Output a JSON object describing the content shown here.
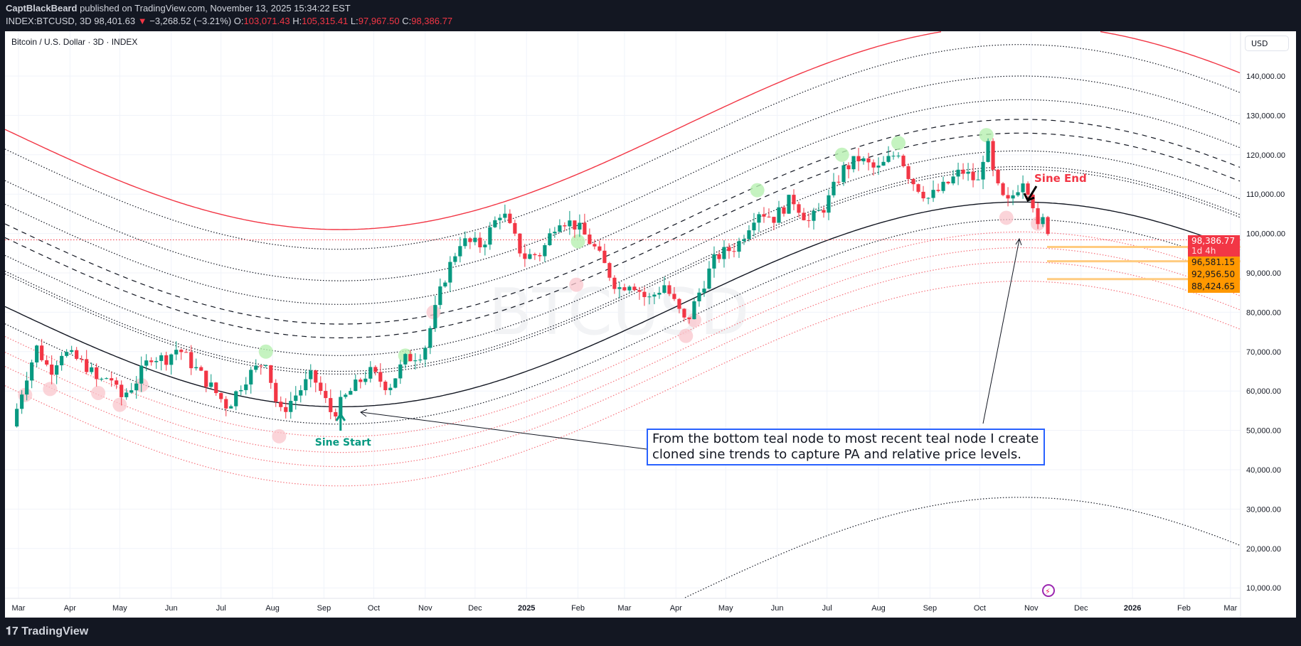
{
  "header": {
    "author": "CaptBlackBeard",
    "published_text": "published on TradingView.com, November 13, 2025 15:34:22 EST",
    "symbol": "INDEX:BTCUSD, 3D",
    "last": "98,401.63",
    "change": "−3,268.52 (−3.21%)",
    "o_label": "O:",
    "o": "103,071.43",
    "h_label": "H:",
    "h": "105,315.41",
    "l_label": "L:",
    "l": "97,967.50",
    "c_label": "C:",
    "c": "98,386.77"
  },
  "chart_title": "Bitcoin / U.S. Dollar · 3D · INDEX",
  "currency_button": "USD",
  "watermark": "BTCUSD",
  "footer_logo": "TradingView",
  "price_tags": {
    "current": "98,386.77",
    "countdown": "1d 4h",
    "levels": [
      "96,581.15",
      "92,956.50",
      "88,424.65"
    ]
  },
  "annotations": {
    "sine_start": "Sine Start",
    "sine_end": "Sine End",
    "note": "From the bottom teal node to most recent teal node I create cloned sine trends to capture PA and relative price levels."
  },
  "colors": {
    "up": "#089981",
    "down": "#f23645",
    "level": "#ff9800",
    "note_border": "#2962ff",
    "highlight_green": "#b6f0b0",
    "highlight_pink": "#f9c6cc",
    "sine_start": "#089981",
    "sine_end": "#f23645"
  },
  "chart_data": {
    "type": "candlestick",
    "interval": "3D",
    "y_ticks": [
      10000,
      20000,
      30000,
      40000,
      50000,
      60000,
      70000,
      80000,
      90000,
      100000,
      110000,
      120000,
      130000,
      140000
    ],
    "y_tick_labels": [
      "10,000.00",
      "20,000.00",
      "30,000.00",
      "40,000.00",
      "50,000.00",
      "60,000.00",
      "70,000.00",
      "80,000.00",
      "90,000.00",
      "100,000.00",
      "110,000.00",
      "120,000.00",
      "130,000.00",
      "140,000.00"
    ],
    "x_ticks": [
      {
        "date": "2024-03-01",
        "label": "Mar"
      },
      {
        "date": "2024-04-01",
        "label": "Apr"
      },
      {
        "date": "2024-05-01",
        "label": "May"
      },
      {
        "date": "2024-06-01",
        "label": "Jun"
      },
      {
        "date": "2024-07-01",
        "label": "Jul"
      },
      {
        "date": "2024-08-01",
        "label": "Aug"
      },
      {
        "date": "2024-09-01",
        "label": "Sep"
      },
      {
        "date": "2024-10-01",
        "label": "Oct"
      },
      {
        "date": "2024-11-01",
        "label": "Nov"
      },
      {
        "date": "2024-12-01",
        "label": "Dec"
      },
      {
        "date": "2025-01-01",
        "label": "2025"
      },
      {
        "date": "2025-02-01",
        "label": "Feb"
      },
      {
        "date": "2025-03-01",
        "label": "Mar"
      },
      {
        "date": "2025-04-01",
        "label": "Apr"
      },
      {
        "date": "2025-05-01",
        "label": "May"
      },
      {
        "date": "2025-06-01",
        "label": "Jun"
      },
      {
        "date": "2025-07-01",
        "label": "Jul"
      },
      {
        "date": "2025-08-01",
        "label": "Aug"
      },
      {
        "date": "2025-09-01",
        "label": "Sep"
      },
      {
        "date": "2025-10-01",
        "label": "Oct"
      },
      {
        "date": "2025-11-01",
        "label": "Nov"
      },
      {
        "date": "2025-12-01",
        "label": "Dec"
      },
      {
        "date": "2026-01-01",
        "label": "2026"
      },
      {
        "date": "2026-02-01",
        "label": "Feb"
      },
      {
        "date": "2026-03-01",
        "label": "Mar"
      }
    ],
    "price_path": [
      [
        "2024-02-26",
        51000
      ],
      [
        "2024-03-05",
        63000
      ],
      [
        "2024-03-12",
        71000
      ],
      [
        "2024-03-20",
        65000
      ],
      [
        "2024-03-27",
        70000
      ],
      [
        "2024-04-05",
        68000
      ],
      [
        "2024-04-12",
        66000
      ],
      [
        "2024-04-18",
        62000
      ],
      [
        "2024-04-25",
        64000
      ],
      [
        "2024-05-01",
        58000
      ],
      [
        "2024-05-10",
        62000
      ],
      [
        "2024-05-20",
        69000
      ],
      [
        "2024-05-28",
        68000
      ],
      [
        "2024-06-05",
        71000
      ],
      [
        "2024-06-15",
        66000
      ],
      [
        "2024-06-25",
        61000
      ],
      [
        "2024-07-05",
        56000
      ],
      [
        "2024-07-15",
        63000
      ],
      [
        "2024-07-28",
        68000
      ],
      [
        "2024-08-05",
        54000
      ],
      [
        "2024-08-15",
        59000
      ],
      [
        "2024-08-25",
        64000
      ],
      [
        "2024-09-06",
        54000
      ],
      [
        "2024-09-15",
        59000
      ],
      [
        "2024-09-28",
        65000
      ],
      [
        "2024-10-10",
        61000
      ],
      [
        "2024-10-20",
        68000
      ],
      [
        "2024-10-31",
        70000
      ],
      [
        "2024-11-12",
        88000
      ],
      [
        "2024-11-22",
        98000
      ],
      [
        "2024-12-05",
        97000
      ],
      [
        "2024-12-17",
        106000
      ],
      [
        "2024-12-30",
        94000
      ],
      [
        "2025-01-10",
        95000
      ],
      [
        "2025-01-20",
        104000
      ],
      [
        "2025-01-31",
        102000
      ],
      [
        "2025-02-10",
        97000
      ],
      [
        "2025-02-25",
        86000
      ],
      [
        "2025-03-05",
        88000
      ],
      [
        "2025-03-15",
        83000
      ],
      [
        "2025-03-25",
        87000
      ],
      [
        "2025-04-07",
        77000
      ],
      [
        "2025-04-15",
        85000
      ],
      [
        "2025-04-25",
        94000
      ],
      [
        "2025-05-08",
        97000
      ],
      [
        "2025-05-20",
        106000
      ],
      [
        "2025-05-30",
        104000
      ],
      [
        "2025-06-10",
        109000
      ],
      [
        "2025-06-20",
        103000
      ],
      [
        "2025-06-30",
        107000
      ],
      [
        "2025-07-10",
        116000
      ],
      [
        "2025-07-20",
        119000
      ],
      [
        "2025-07-31",
        116000
      ],
      [
        "2025-08-13",
        121000
      ],
      [
        "2025-08-20",
        114000
      ],
      [
        "2025-08-31",
        109000
      ],
      [
        "2025-09-10",
        112000
      ],
      [
        "2025-09-20",
        116000
      ],
      [
        "2025-09-30",
        113000
      ],
      [
        "2025-10-05",
        124000
      ],
      [
        "2025-10-10",
        113000
      ],
      [
        "2025-10-17",
        107000
      ],
      [
        "2025-10-27",
        114000
      ],
      [
        "2025-11-01",
        110000
      ],
      [
        "2025-11-05",
        101000
      ],
      [
        "2025-11-09",
        104000
      ],
      [
        "2025-11-13",
        98386.77
      ]
    ],
    "sine_base": {
      "trough_date": "2024-09-11",
      "trough_price": 56000,
      "amplitude": 26000,
      "period_days": 1640
    },
    "sine_clones": [
      {
        "offset": 45000,
        "style": "solid",
        "color": "#f23645"
      },
      {
        "offset": 40000,
        "style": "dotted",
        "color": "#131722"
      },
      {
        "offset": 32000,
        "style": "dotted",
        "color": "#131722"
      },
      {
        "offset": 26000,
        "style": "dotted",
        "color": "#131722"
      },
      {
        "offset": 21000,
        "style": "dashed",
        "color": "#131722"
      },
      {
        "offset": 17500,
        "style": "dashed",
        "color": "#131722"
      },
      {
        "offset": 13000,
        "style": "dotted",
        "color": "#131722"
      },
      {
        "offset": 9000,
        "style": "dotted",
        "color": "#131722"
      },
      {
        "offset": 8300,
        "style": "dotted",
        "color": "#131722"
      },
      {
        "offset": 0,
        "style": "solid",
        "color": "#131722"
      },
      {
        "offset": -4400,
        "style": "dotted",
        "color": "#131722"
      },
      {
        "offset": -7600,
        "style": "dotted",
        "color": "#f23645"
      },
      {
        "offset": -11600,
        "style": "dotted",
        "color": "#f23645"
      },
      {
        "offset": -15200,
        "style": "dotted",
        "color": "#f23645"
      },
      {
        "offset": -20100,
        "style": "dotted",
        "color": "#f23645"
      },
      {
        "offset": -75000,
        "style": "dotted",
        "color": "#131722"
      }
    ],
    "horizontal_levels": [
      96581.15,
      92956.5,
      88424.65
    ],
    "current_price": 98386.77,
    "highlights_green": [
      [
        "2024-07-28",
        70000
      ],
      [
        "2024-10-20",
        69000
      ],
      [
        "2025-02-01",
        98000
      ],
      [
        "2025-05-20",
        111000
      ],
      [
        "2025-07-10",
        120000
      ],
      [
        "2025-08-13",
        123000
      ],
      [
        "2025-10-05",
        125000
      ]
    ],
    "highlights_pink": [
      [
        "2024-03-05",
        59000
      ],
      [
        "2024-03-20",
        60500
      ],
      [
        "2024-04-18",
        59500
      ],
      [
        "2024-05-01",
        56500
      ],
      [
        "2024-05-14",
        61500
      ],
      [
        "2024-08-05",
        48500
      ],
      [
        "2024-11-06",
        80000
      ],
      [
        "2025-01-31",
        87000
      ],
      [
        "2025-04-07",
        74000
      ],
      [
        "2025-04-12",
        78000
      ],
      [
        "2025-10-17",
        104000
      ],
      [
        "2025-11-05",
        102500
      ]
    ]
  }
}
